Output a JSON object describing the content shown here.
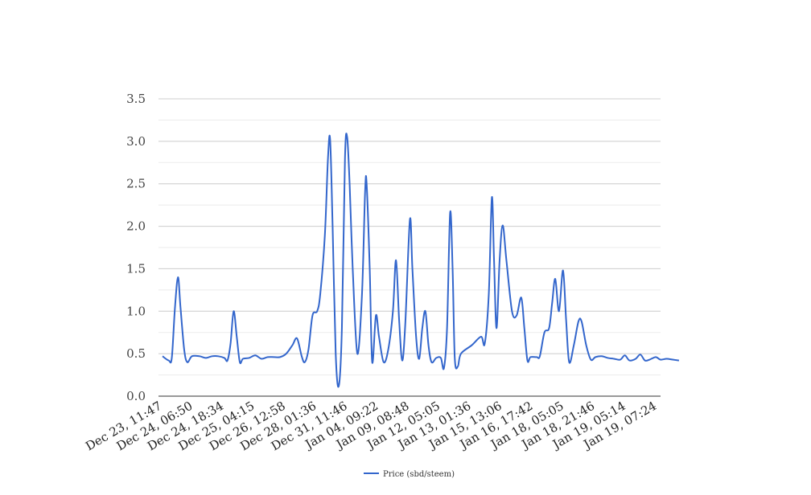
{
  "chart_data": {
    "type": "line",
    "title": "",
    "xlabel": "",
    "ylabel": "",
    "ylim": [
      0,
      3.5
    ],
    "y_ticks": [
      "0.0",
      "0.5",
      "1.0",
      "1.5",
      "2.0",
      "2.5",
      "3.0",
      "3.5"
    ],
    "grid": true,
    "minor_grid": true,
    "legend_position": "bottom",
    "x_tick_labels": [
      "Dec 23, 11:47",
      "Dec 24, 06:50",
      "Dec 24, 18:34",
      "Dec 25, 04:15",
      "Dec 26, 12:58",
      "Dec 28, 01:36",
      "Dec 31, 11:46",
      "Jan 04, 09:22",
      "Jan 09, 08:48",
      "Jan 12, 05:05",
      "Jan 13, 01:36",
      "Jan 15, 13:06",
      "Jan 16, 17:42",
      "Jan 18, 05:05",
      "Jan 18, 21:46",
      "Jan 19, 05:14",
      "Jan 19, 07:24"
    ],
    "series": [
      {
        "name": "Price (sbd/steem)",
        "color": "#3366cc",
        "points": [
          [
            0,
            0.47
          ],
          [
            0.2,
            0.42
          ],
          [
            0.3,
            0.45
          ],
          [
            0.4,
            1.03
          ],
          [
            0.5,
            1.4
          ],
          [
            0.58,
            1.05
          ],
          [
            0.7,
            0.55
          ],
          [
            0.8,
            0.4
          ],
          [
            0.95,
            0.47
          ],
          [
            1.2,
            0.47
          ],
          [
            1.4,
            0.45
          ],
          [
            1.6,
            0.47
          ],
          [
            1.8,
            0.47
          ],
          [
            2.0,
            0.45
          ],
          [
            2.1,
            0.42
          ],
          [
            2.2,
            0.62
          ],
          [
            2.3,
            1.0
          ],
          [
            2.4,
            0.7
          ],
          [
            2.5,
            0.4
          ],
          [
            2.6,
            0.44
          ],
          [
            2.8,
            0.45
          ],
          [
            3.0,
            0.48
          ],
          [
            3.2,
            0.44
          ],
          [
            3.4,
            0.46
          ],
          [
            3.6,
            0.46
          ],
          [
            3.8,
            0.46
          ],
          [
            4.0,
            0.5
          ],
          [
            4.2,
            0.6
          ],
          [
            4.35,
            0.68
          ],
          [
            4.5,
            0.47
          ],
          [
            4.6,
            0.4
          ],
          [
            4.72,
            0.55
          ],
          [
            4.85,
            0.95
          ],
          [
            5.0,
            1.0
          ],
          [
            5.1,
            1.2
          ],
          [
            5.25,
            1.9
          ],
          [
            5.35,
            2.8
          ],
          [
            5.42,
            3.02
          ],
          [
            5.5,
            2.0
          ],
          [
            5.6,
            0.5
          ],
          [
            5.7,
            0.12
          ],
          [
            5.8,
            0.8
          ],
          [
            5.9,
            2.8
          ],
          [
            5.97,
            3.05
          ],
          [
            6.05,
            2.5
          ],
          [
            6.15,
            1.5
          ],
          [
            6.3,
            0.5
          ],
          [
            6.45,
            1.2
          ],
          [
            6.55,
            2.4
          ],
          [
            6.6,
            2.5
          ],
          [
            6.7,
            1.5
          ],
          [
            6.78,
            0.4
          ],
          [
            6.9,
            0.95
          ],
          [
            7.0,
            0.7
          ],
          [
            7.15,
            0.4
          ],
          [
            7.3,
            0.55
          ],
          [
            7.45,
            1.0
          ],
          [
            7.55,
            1.6
          ],
          [
            7.65,
            0.9
          ],
          [
            7.75,
            0.42
          ],
          [
            7.85,
            0.85
          ],
          [
            8.0,
            2.08
          ],
          [
            8.08,
            1.5
          ],
          [
            8.2,
            0.7
          ],
          [
            8.3,
            0.44
          ],
          [
            8.4,
            0.8
          ],
          [
            8.5,
            1.0
          ],
          [
            8.6,
            0.6
          ],
          [
            8.7,
            0.4
          ],
          [
            8.85,
            0.45
          ],
          [
            9.0,
            0.45
          ],
          [
            9.1,
            0.33
          ],
          [
            9.2,
            0.8
          ],
          [
            9.3,
            2.16
          ],
          [
            9.38,
            1.5
          ],
          [
            9.45,
            0.45
          ],
          [
            9.55,
            0.35
          ],
          [
            9.65,
            0.5
          ],
          [
            10.0,
            0.6
          ],
          [
            10.3,
            0.7
          ],
          [
            10.42,
            0.62
          ],
          [
            10.55,
            1.2
          ],
          [
            10.65,
            2.34
          ],
          [
            10.72,
            1.6
          ],
          [
            10.8,
            0.8
          ],
          [
            10.9,
            1.6
          ],
          [
            11.0,
            2.01
          ],
          [
            11.12,
            1.6
          ],
          [
            11.3,
            1.0
          ],
          [
            11.45,
            0.95
          ],
          [
            11.6,
            1.16
          ],
          [
            11.7,
            0.8
          ],
          [
            11.8,
            0.42
          ],
          [
            11.9,
            0.46
          ],
          [
            12.1,
            0.46
          ],
          [
            12.2,
            0.47
          ],
          [
            12.35,
            0.75
          ],
          [
            12.5,
            0.8
          ],
          [
            12.6,
            1.1
          ],
          [
            12.7,
            1.38
          ],
          [
            12.82,
            1.0
          ],
          [
            12.95,
            1.48
          ],
          [
            13.05,
            0.9
          ],
          [
            13.15,
            0.4
          ],
          [
            13.3,
            0.6
          ],
          [
            13.45,
            0.88
          ],
          [
            13.55,
            0.88
          ],
          [
            13.7,
            0.6
          ],
          [
            13.85,
            0.43
          ],
          [
            14.0,
            0.46
          ],
          [
            14.2,
            0.47
          ],
          [
            14.4,
            0.45
          ],
          [
            14.6,
            0.44
          ],
          [
            14.8,
            0.43
          ],
          [
            14.95,
            0.48
          ],
          [
            15.1,
            0.42
          ],
          [
            15.3,
            0.44
          ],
          [
            15.45,
            0.49
          ],
          [
            15.6,
            0.42
          ],
          [
            15.75,
            0.43
          ],
          [
            15.95,
            0.46
          ],
          [
            16.1,
            0.43
          ],
          [
            16.3,
            0.44
          ],
          [
            16.5,
            0.43
          ],
          [
            16.7,
            0.42
          ]
        ]
      }
    ]
  },
  "colors": {
    "line": "#3366cc",
    "major_grid": "#cccccc",
    "minor_grid": "#ebebeb",
    "baseline": "#333333"
  }
}
